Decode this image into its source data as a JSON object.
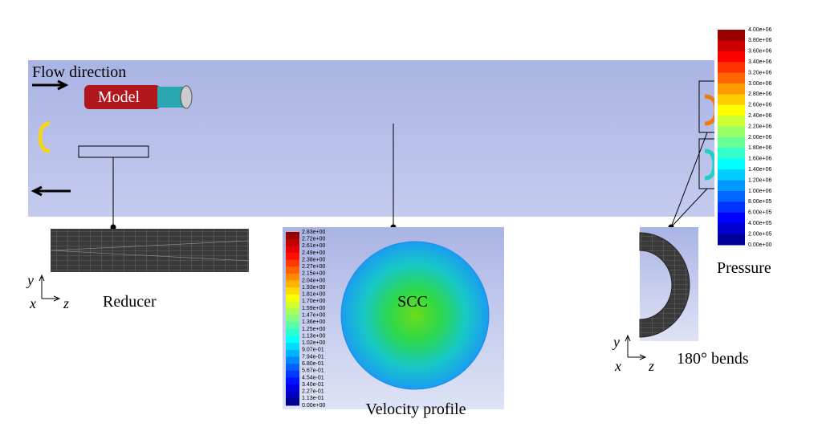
{
  "annotations": {
    "flow_direction": "Flow direction",
    "model": "Model",
    "reducer": "Reducer",
    "scc": "SCC",
    "velocity_profile": "Velocity profile",
    "pressure": "Pressure",
    "bends": "180° bends"
  },
  "axes": {
    "reducer": {
      "y": "y",
      "x": "x",
      "z": "z"
    },
    "bends": {
      "y": "y",
      "x": "x",
      "z": "z"
    }
  },
  "pressure_colorbar": {
    "labels": [
      "4.00e+06",
      "3.80e+06",
      "3.60e+06",
      "3.40e+06",
      "3.20e+06",
      "3.00e+06",
      "2.80e+06",
      "2.60e+06",
      "2.40e+06",
      "2.20e+06",
      "2.00e+06",
      "1.80e+06",
      "1.60e+06",
      "1.40e+06",
      "1.20e+06",
      "1.00e+06",
      "8.00e+05",
      "6.00e+05",
      "4.00e+05",
      "2.00e+05",
      "0.00e+00"
    ]
  },
  "velocity_colorbar": {
    "labels": [
      "2.83e+00",
      "2.72e+00",
      "2.61e+00",
      "2.49e+00",
      "2.38e+00",
      "2.27e+00",
      "2.15e+00",
      "2.04e+00",
      "1.93e+00",
      "1.81e+00",
      "1.70e+00",
      "1.59e+00",
      "1.47e+00",
      "1.36e+00",
      "1.25e+00",
      "1.13e+00",
      "1.02e+00",
      "9.07e-01",
      "7.94e-01",
      "6.80e-01",
      "5.67e-01",
      "4.54e-01",
      "3.40e-01",
      "2.27e-01",
      "1.13e-01",
      "0.00e+00"
    ]
  }
}
